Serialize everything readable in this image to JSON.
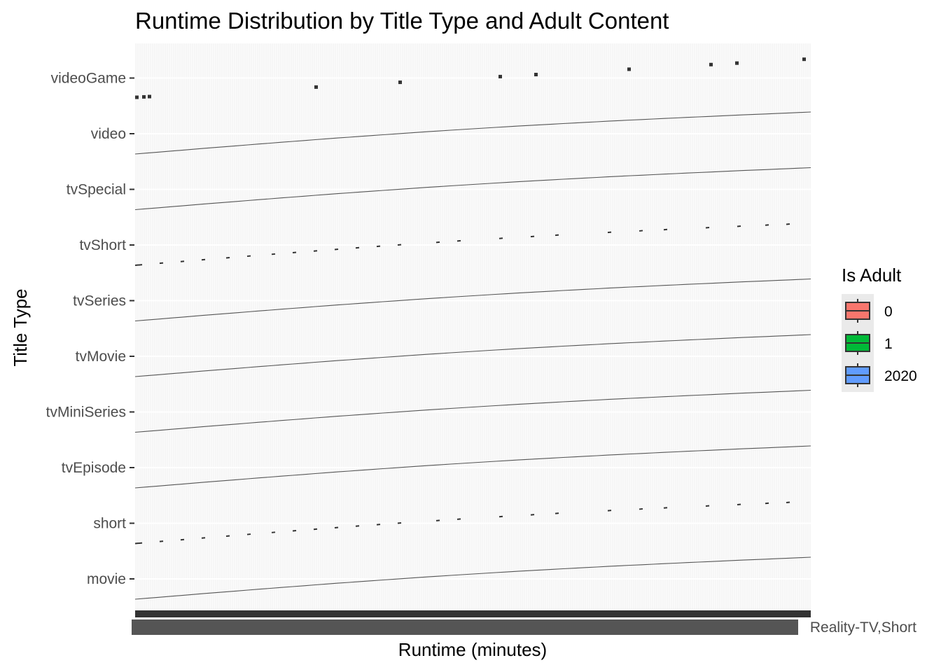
{
  "chart_data": {
    "type": "boxplot",
    "title": "Runtime Distribution by Title Type and Adult Content",
    "xlabel": "Runtime (minutes)",
    "ylabel": "Title Type",
    "categories": [
      "movie",
      "short",
      "tvEpisode",
      "tvMiniSeries",
      "tvMovie",
      "tvSeries",
      "tvShort",
      "tvSpecial",
      "video",
      "videoGame"
    ],
    "x_axis": {
      "type": "discrete",
      "overplotted_tick_labels": true,
      "visible_last_tick_label": "Reality-TV,Short"
    },
    "legend": {
      "title": "Is Adult",
      "position": "right",
      "entries": [
        {
          "label": "0",
          "color": "#F8766D"
        },
        {
          "label": "1",
          "color": "#00BA38"
        },
        {
          "label": "2020",
          "color": "#619CFF"
        }
      ]
    },
    "series_pattern": {
      "movie": "line",
      "short": "dashes",
      "tvEpisode": "line",
      "tvMiniSeries": "line",
      "tvMovie": "line",
      "tvSeries": "line",
      "tvShort": "dashes",
      "tvSpecial": "line",
      "video": "line",
      "videoGame": "points"
    },
    "grid": true,
    "panel_background": "#EBEBEB"
  }
}
